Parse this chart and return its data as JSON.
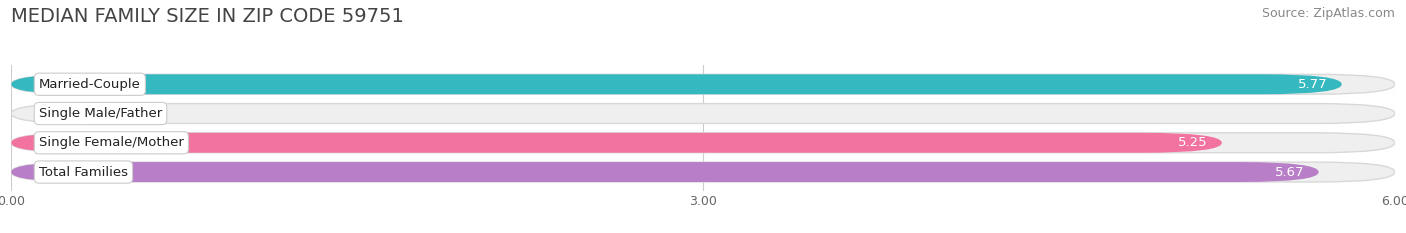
{
  "title": "MEDIAN FAMILY SIZE IN ZIP CODE 59751",
  "source": "Source: ZipAtlas.com",
  "categories": [
    "Married-Couple",
    "Single Male/Father",
    "Single Female/Mother",
    "Total Families"
  ],
  "values": [
    5.77,
    0.0,
    5.25,
    5.67
  ],
  "bar_colors": [
    "#35b8bf",
    "#adc4ef",
    "#f272a0",
    "#b87ec8"
  ],
  "bar_label_colors": [
    "white",
    "#555555",
    "white",
    "white"
  ],
  "xlim": [
    0,
    6.0
  ],
  "xticks": [
    0.0,
    3.0,
    6.0
  ],
  "xtick_labels": [
    "0.00",
    "3.00",
    "6.00"
  ],
  "background_color": "#ffffff",
  "bar_bg_color": "#efefef",
  "bar_bg_edge_color": "#d8d8d8",
  "title_fontsize": 14,
  "source_fontsize": 9,
  "label_fontsize": 9.5,
  "value_fontsize": 9.5
}
